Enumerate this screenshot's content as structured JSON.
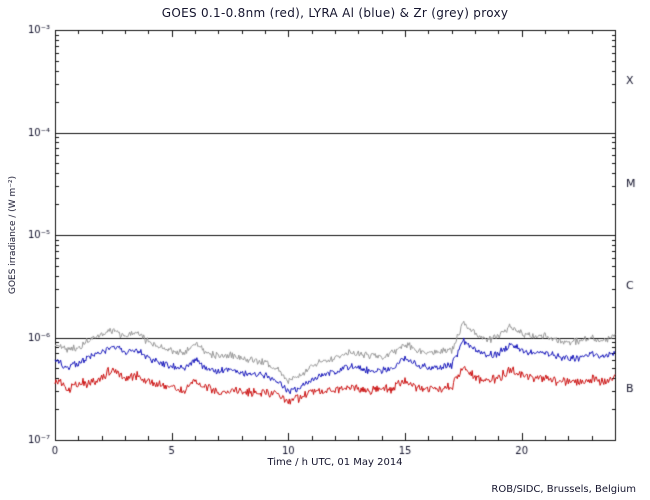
{
  "credit": "ROB/SIDC, Brussels, Belgium",
  "colors": {
    "background": "#ffffff",
    "frame": "#111111",
    "text": "#15152e",
    "goes_red": "#cc1111",
    "lyra_al_blue": "#1515bb",
    "lyra_zr_grey": "#999999"
  },
  "chart_data": {
    "type": "line",
    "title": "GOES 0.1-0.8nm (red), LYRA Al (blue) & Zr (grey) proxy",
    "xlabel": "Time / h UTC, 01 May 2014",
    "ylabel": "GOES irradiance / (W m⁻²)",
    "xlim": [
      0,
      24
    ],
    "ylim": [
      1e-07,
      0.001
    ],
    "y_log": true,
    "grid": false,
    "x_ticks_major": [
      0,
      5,
      10,
      15,
      20
    ],
    "x_minor_step": 1,
    "y_ticks": [
      {
        "value": 0.001,
        "label": "10⁻³"
      },
      {
        "value": 0.0001,
        "label": "10⁻⁴"
      },
      {
        "value": 1e-05,
        "label": "10⁻⁵"
      },
      {
        "value": 1e-06,
        "label": "10⁻⁶"
      },
      {
        "value": 1e-07,
        "label": "10⁻⁷"
      }
    ],
    "hlines": [
      0.0001,
      1e-05,
      1e-06
    ],
    "flare_class_labels": [
      {
        "label": "X",
        "value": 0.000316
      },
      {
        "label": "M",
        "value": 3.16e-05
      },
      {
        "label": "C",
        "value": 3.16e-06
      },
      {
        "label": "B",
        "value": 3.16e-07
      }
    ],
    "scale": 1e-07,
    "x": [
      0,
      0.5,
      1,
      1.5,
      2,
      2.5,
      3,
      3.5,
      4,
      4.5,
      5,
      5.5,
      6,
      6.5,
      7,
      7.5,
      8,
      8.5,
      9,
      9.5,
      10,
      10.5,
      11,
      11.5,
      12,
      12.5,
      13,
      13.5,
      14,
      14.5,
      15,
      15.5,
      16,
      16.5,
      17,
      17.5,
      18,
      18.5,
      19,
      19.5,
      20,
      20.5,
      21,
      21.5,
      22,
      22.5,
      23,
      23.5,
      24
    ],
    "series": [
      {
        "name": "GOES 0.1-0.8nm",
        "color": "#cc1111",
        "noise": 0.16,
        "values": [
          4.0,
          3.2,
          3.5,
          3.6,
          4.0,
          5.0,
          3.8,
          4.2,
          3.6,
          3.4,
          3.2,
          3.1,
          3.8,
          3.2,
          3.0,
          3.1,
          3.0,
          2.9,
          2.9,
          2.8,
          2.5,
          2.6,
          2.9,
          3.0,
          3.1,
          3.3,
          3.2,
          3.0,
          3.1,
          3.2,
          3.8,
          3.3,
          3.1,
          3.2,
          3.3,
          5.2,
          4.2,
          3.8,
          4.0,
          4.8,
          4.3,
          4.0,
          4.1,
          3.8,
          3.7,
          3.7,
          3.9,
          3.7,
          4.2
        ]
      },
      {
        "name": "LYRA Al proxy",
        "color": "#1515bb",
        "noise": 0.12,
        "values": [
          6.0,
          5.2,
          5.6,
          6.5,
          7.2,
          8.2,
          7.0,
          7.8,
          6.2,
          5.6,
          5.2,
          5.0,
          6.0,
          5.0,
          4.7,
          4.9,
          4.5,
          4.4,
          4.2,
          3.8,
          3.0,
          3.2,
          3.9,
          4.4,
          4.6,
          5.2,
          5.0,
          4.7,
          4.8,
          5.0,
          6.2,
          5.4,
          5.0,
          5.1,
          5.4,
          9.5,
          7.5,
          6.8,
          7.0,
          8.5,
          7.6,
          7.0,
          7.2,
          6.6,
          6.3,
          6.4,
          6.8,
          6.4,
          7.2
        ]
      },
      {
        "name": "LYRA Zr proxy",
        "color": "#999999",
        "noise": 0.12,
        "values": [
          8.5,
          7.5,
          8.0,
          9.5,
          10.5,
          12.0,
          10.0,
          11.5,
          9.0,
          8.0,
          7.5,
          7.0,
          8.5,
          7.0,
          6.5,
          6.8,
          6.2,
          6.0,
          5.8,
          5.0,
          3.8,
          4.2,
          5.2,
          6.0,
          6.3,
          7.2,
          7.0,
          6.5,
          6.6,
          7.0,
          8.8,
          7.5,
          7.0,
          7.2,
          7.5,
          14.0,
          11.0,
          9.5,
          10.0,
          12.5,
          11.0,
          10.0,
          10.5,
          9.5,
          9.0,
          9.2,
          9.8,
          9.2,
          10.5
        ]
      }
    ]
  }
}
